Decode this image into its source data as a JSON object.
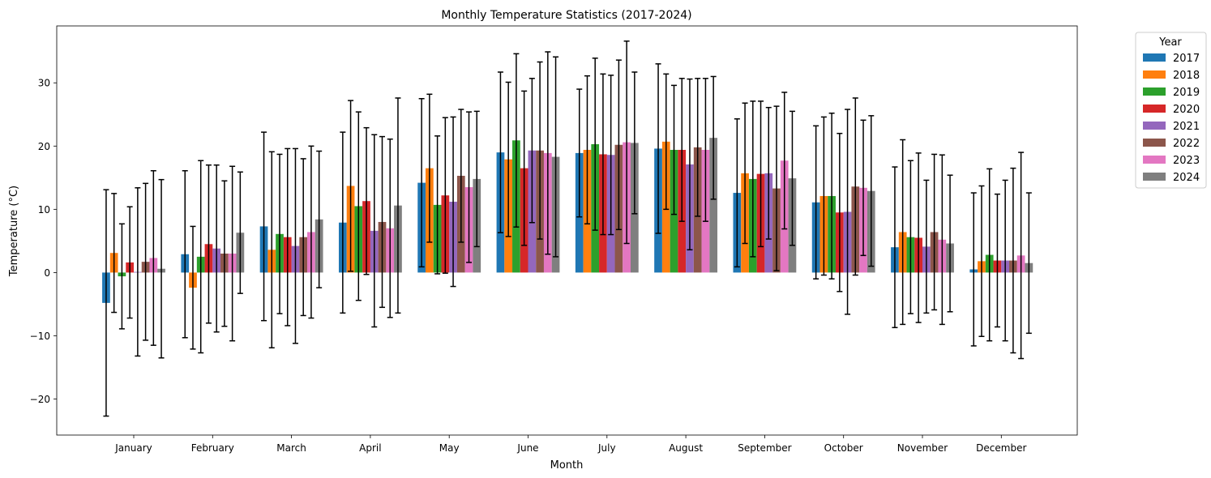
{
  "chart_data": {
    "type": "bar",
    "title": "Monthly Temperature Statistics (2017-2024)",
    "xlabel": "Month",
    "ylabel": "Temperature (°C)",
    "ylim": [
      -25.7,
      39
    ],
    "yticks": [
      -20,
      -10,
      0,
      10,
      20,
      30
    ],
    "legend_title": "Year",
    "legend_position": "outside-top-right",
    "categories": [
      "January",
      "February",
      "March",
      "April",
      "May",
      "June",
      "July",
      "August",
      "September",
      "October",
      "November",
      "December"
    ],
    "series": [
      {
        "name": "2017",
        "color": "#1f77b4",
        "values": [
          -4.8,
          2.9,
          7.3,
          7.9,
          14.2,
          19.0,
          18.9,
          19.6,
          12.6,
          11.1,
          4.0,
          0.5
        ],
        "errors": [
          17.9,
          13.2,
          14.9,
          14.3,
          13.3,
          12.7,
          10.1,
          13.4,
          11.7,
          12.1,
          12.7,
          12.1
        ]
      },
      {
        "name": "2018",
        "color": "#ff7f0e",
        "values": [
          3.1,
          -2.4,
          3.6,
          13.7,
          16.5,
          17.9,
          19.4,
          20.7,
          15.7,
          12.1,
          6.4,
          1.8
        ],
        "errors": [
          9.4,
          9.7,
          15.5,
          13.5,
          11.7,
          12.2,
          11.7,
          10.7,
          11.1,
          12.5,
          14.6,
          11.9
        ]
      },
      {
        "name": "2019",
        "color": "#2ca02c",
        "values": [
          -0.6,
          2.5,
          6.1,
          10.5,
          10.7,
          20.9,
          20.3,
          19.4,
          14.8,
          12.1,
          5.6,
          2.8
        ],
        "errors": [
          8.3,
          15.2,
          12.6,
          14.9,
          10.9,
          13.7,
          13.6,
          10.2,
          12.3,
          13.1,
          12.1,
          13.6
        ]
      },
      {
        "name": "2020",
        "color": "#d62728",
        "values": [
          1.6,
          4.5,
          5.6,
          11.3,
          12.2,
          16.5,
          18.7,
          19.4,
          15.6,
          9.5,
          5.5,
          1.9
        ],
        "errors": [
          8.8,
          12.5,
          14.0,
          11.6,
          12.3,
          12.2,
          12.7,
          11.3,
          11.5,
          12.5,
          13.4,
          10.5
        ]
      },
      {
        "name": "2021",
        "color": "#9467bd",
        "values": [
          0.1,
          3.8,
          4.2,
          6.6,
          11.2,
          19.3,
          18.6,
          17.1,
          15.7,
          9.6,
          4.1,
          1.9
        ],
        "errors": [
          13.3,
          13.2,
          15.4,
          15.2,
          13.4,
          11.4,
          12.6,
          13.5,
          10.4,
          16.2,
          10.5,
          12.7
        ]
      },
      {
        "name": "2022",
        "color": "#8c564b",
        "values": [
          1.7,
          3.0,
          5.6,
          8.0,
          15.3,
          19.3,
          20.2,
          19.8,
          13.3,
          13.6,
          6.4,
          1.9
        ],
        "errors": [
          12.4,
          11.5,
          12.4,
          13.5,
          10.5,
          14.0,
          13.4,
          10.9,
          13.0,
          14.0,
          12.3,
          14.6
        ]
      },
      {
        "name": "2023",
        "color": "#e377c2",
        "values": [
          2.3,
          3.0,
          6.4,
          7.0,
          13.5,
          18.9,
          20.6,
          19.4,
          17.7,
          13.4,
          5.2,
          2.7
        ],
        "errors": [
          13.8,
          13.8,
          13.6,
          14.1,
          11.9,
          16.0,
          16.0,
          11.3,
          10.8,
          10.7,
          13.4,
          16.3
        ]
      },
      {
        "name": "2024",
        "color": "#7f7f7f",
        "values": [
          0.6,
          6.3,
          8.4,
          10.6,
          14.8,
          18.3,
          20.5,
          21.3,
          14.9,
          12.9,
          4.6,
          1.5
        ],
        "errors": [
          14.1,
          9.6,
          10.8,
          17.0,
          10.7,
          15.8,
          11.2,
          9.7,
          10.6,
          11.9,
          10.8,
          11.1
        ]
      }
    ]
  }
}
